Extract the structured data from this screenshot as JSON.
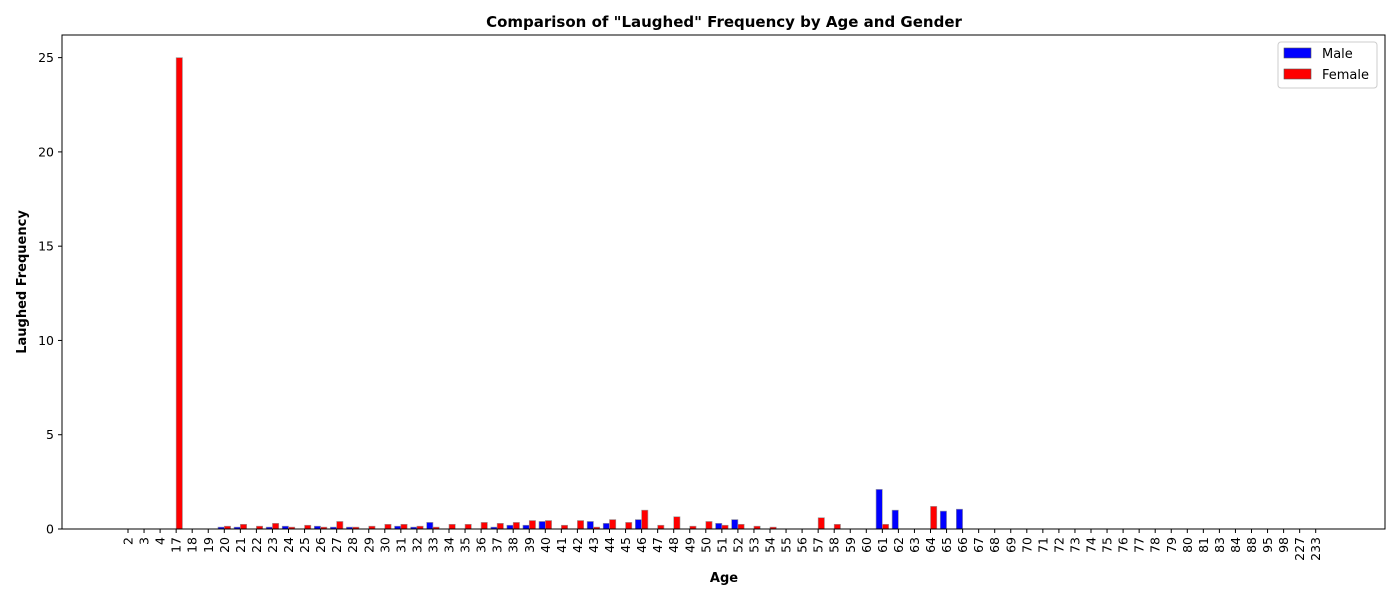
{
  "chart_data": {
    "type": "bar",
    "title": "Comparison of \"Laughed\" Frequency by Age and Gender",
    "xlabel": "Age",
    "ylabel": "Laughed Frequency",
    "ylim": [
      0,
      26.2
    ],
    "yticks": [
      0,
      5,
      10,
      15,
      20,
      25
    ],
    "grid": false,
    "legend_position": "top-right",
    "categories": [
      "2",
      "3",
      "4",
      "17",
      "18",
      "19",
      "20",
      "21",
      "22",
      "23",
      "24",
      "25",
      "26",
      "27",
      "28",
      "29",
      "30",
      "31",
      "32",
      "33",
      "34",
      "35",
      "36",
      "37",
      "38",
      "39",
      "40",
      "41",
      "42",
      "43",
      "44",
      "45",
      "46",
      "47",
      "48",
      "49",
      "50",
      "51",
      "52",
      "53",
      "54",
      "55",
      "56",
      "57",
      "58",
      "59",
      "60",
      "61",
      "62",
      "63",
      "64",
      "65",
      "66",
      "67",
      "68",
      "69",
      "70",
      "71",
      "72",
      "73",
      "74",
      "75",
      "76",
      "77",
      "78",
      "79",
      "80",
      "81",
      "83",
      "84",
      "88",
      "95",
      "98",
      "227",
      "233"
    ],
    "series": [
      {
        "name": "Male",
        "color": "#0000ff",
        "values": [
          0,
          0,
          0,
          0,
          0,
          0,
          0.1,
          0.1,
          0,
          0.1,
          0.15,
          0,
          0.15,
          0.1,
          0.1,
          0,
          0,
          0.15,
          0.1,
          0.35,
          0,
          0,
          0,
          0.1,
          0.2,
          0.2,
          0.4,
          0,
          0,
          0.4,
          0.3,
          0,
          0.5,
          0,
          0,
          0,
          0,
          0.3,
          0.5,
          0,
          0,
          0,
          0,
          0,
          0,
          0,
          0,
          2.1,
          1.0,
          0,
          0,
          0.95,
          1.05,
          0,
          0,
          0,
          0,
          0,
          0,
          0,
          0,
          0,
          0,
          0,
          0,
          0,
          0,
          0,
          0,
          0,
          0,
          0,
          0,
          0,
          0
        ]
      },
      {
        "name": "Female",
        "color": "#ff0000",
        "values": [
          0,
          0,
          0,
          25.0,
          0,
          0,
          0.15,
          0.25,
          0.15,
          0.3,
          0.1,
          0.2,
          0.1,
          0.4,
          0.1,
          0.15,
          0.25,
          0.25,
          0.15,
          0.1,
          0.25,
          0.25,
          0.35,
          0.3,
          0.35,
          0.45,
          0.45,
          0.2,
          0.45,
          0.1,
          0.5,
          0.35,
          1.0,
          0.2,
          0.65,
          0.15,
          0.4,
          0.2,
          0.25,
          0.15,
          0.1,
          0,
          0,
          0.6,
          0.25,
          0,
          0,
          0.25,
          0,
          0,
          1.2,
          0,
          0,
          0,
          0,
          0,
          0,
          0,
          0,
          0,
          0,
          0,
          0,
          0,
          0,
          0,
          0,
          0,
          0,
          0,
          0,
          0,
          0,
          0,
          0
        ]
      }
    ]
  }
}
